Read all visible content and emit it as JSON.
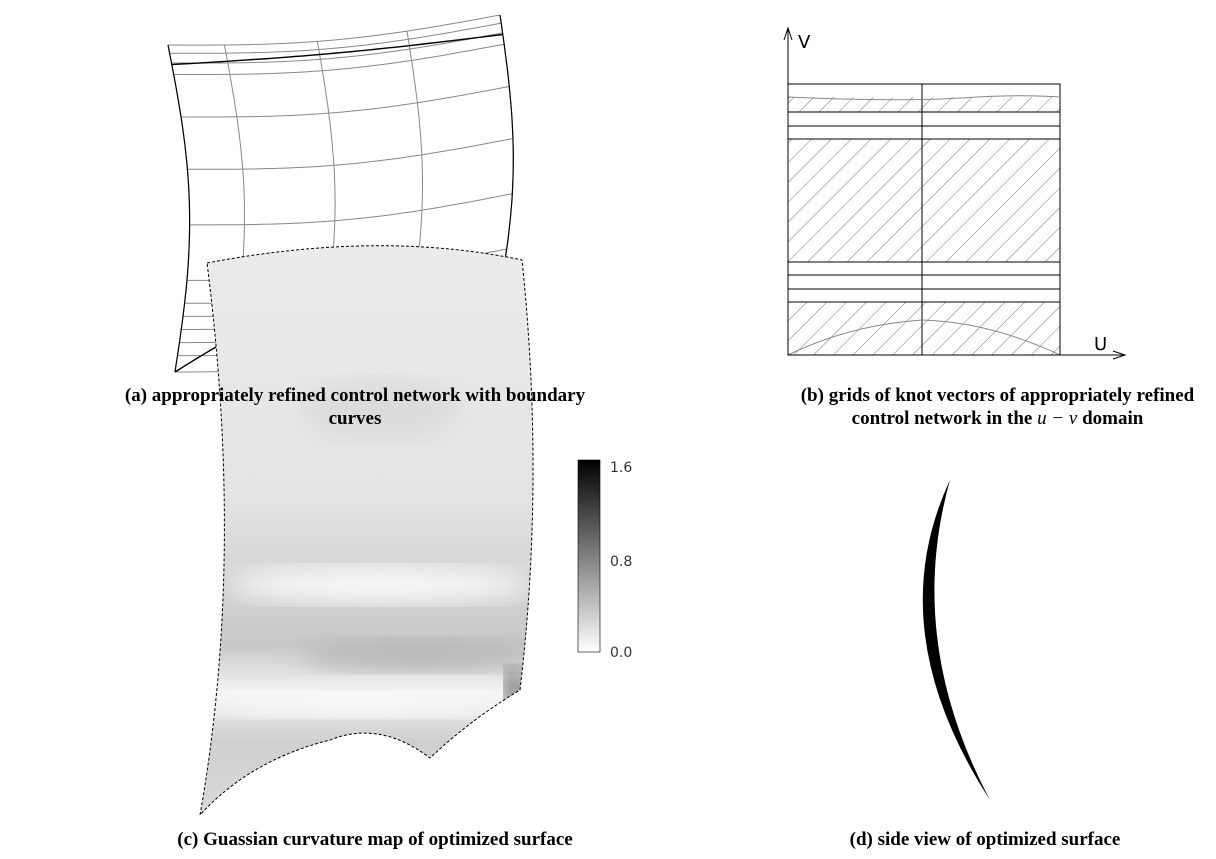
{
  "panels": {
    "a": {
      "caption": "(a) appropriately refined control network with boundary curves"
    },
    "b": {
      "caption_start": "(b) grids of knot vectors of appropriately refined control network in the",
      "caption_math": "u − v",
      "caption_end": "domain",
      "axis_u": "U",
      "axis_v": "V"
    },
    "c": {
      "caption": "(c) Guassian curvature map of optimized surface",
      "colorbar_ticks": [
        "1.6",
        "0.8",
        "0.0"
      ]
    },
    "d": {
      "caption": "(d) side view of optimized surface"
    }
  }
}
